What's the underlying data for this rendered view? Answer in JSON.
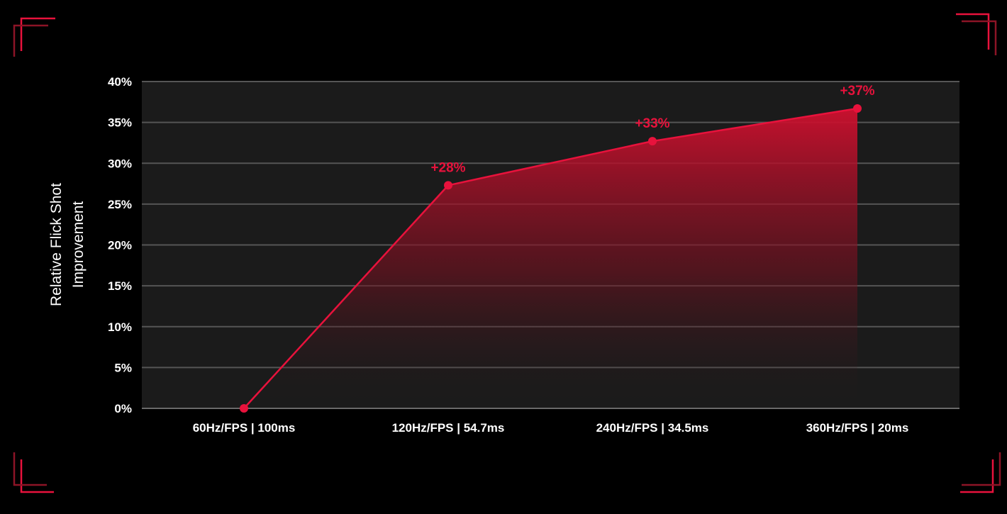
{
  "chart_data": {
    "type": "area",
    "categories": [
      "60Hz/FPS | 100ms",
      "120Hz/FPS | 54.7ms",
      "240Hz/FPS | 34.5ms",
      "360Hz/FPS | 20ms"
    ],
    "series": [
      {
        "values": [
          0,
          27.3,
          32.7,
          36.7
        ],
        "data_labels": [
          "",
          "+28%",
          "+33%",
          "+37%"
        ]
      }
    ],
    "ylabel": "Relative Flick Shot Improvement",
    "ylabel_lines": [
      "Relative Flick Shot",
      "Improvement"
    ],
    "ylim": [
      0,
      40
    ],
    "yticks": [
      0,
      5,
      10,
      15,
      20,
      25,
      30,
      35,
      40
    ],
    "ytick_labels": [
      "0%",
      "5%",
      "10%",
      "15%",
      "20%",
      "25%",
      "30%",
      "35%",
      "40%"
    ],
    "grid": true,
    "legend": "none"
  },
  "colors": {
    "background": "#000000",
    "plot_background": "#1b1b1b",
    "gridline": "#555555",
    "accent": "#e8123c",
    "accent_dark": "#8c1426",
    "text": "#ffffff"
  }
}
